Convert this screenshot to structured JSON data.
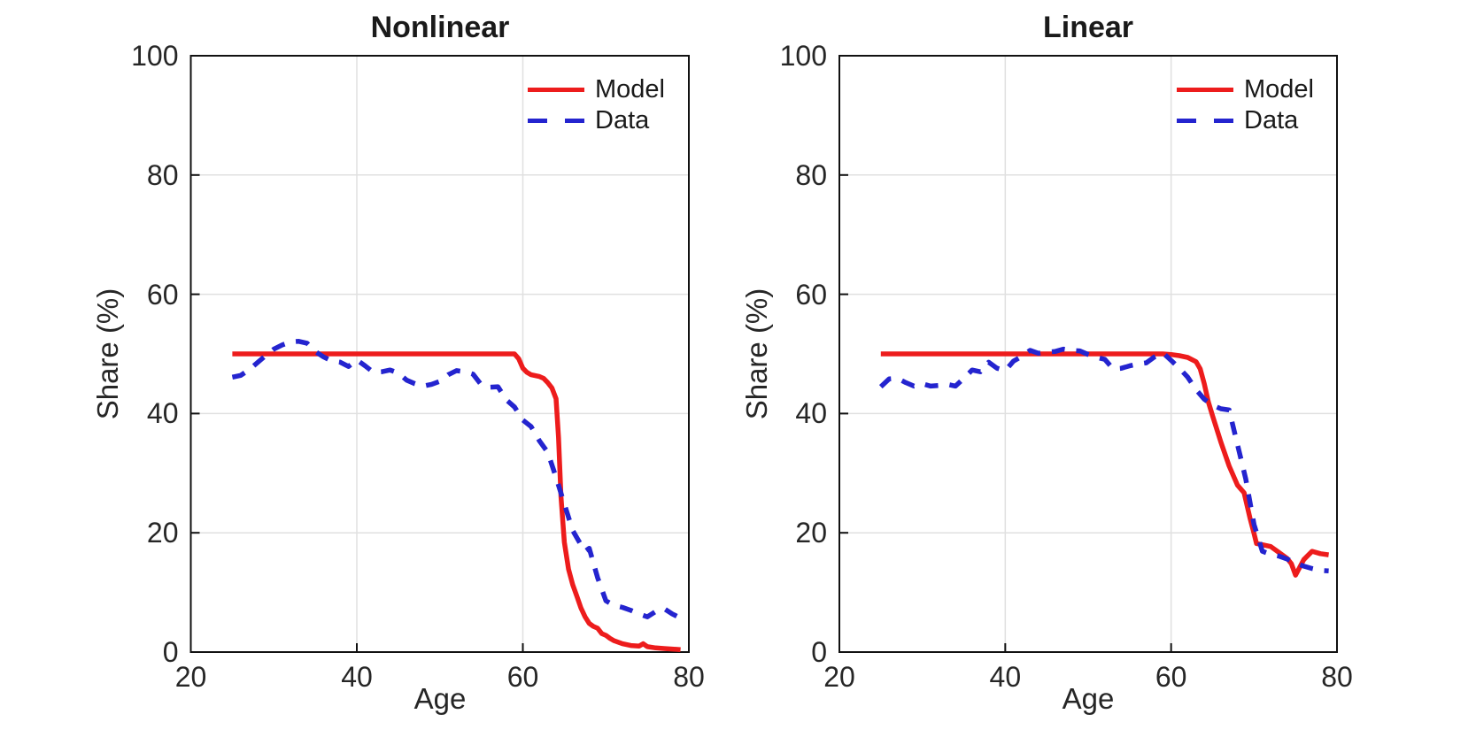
{
  "figure": {
    "background": "#ffffff",
    "axis_color": "#111111",
    "grid_color": "#e0e0e0",
    "text_color": "#262626"
  },
  "chart_data": [
    {
      "type": "line",
      "title": "Nonlinear",
      "xlabel": "Age",
      "ylabel": "Share (%)",
      "xlim": [
        20,
        80
      ],
      "ylim": [
        0,
        100
      ],
      "xticks": [
        20,
        40,
        60,
        80
      ],
      "yticks": [
        0,
        20,
        40,
        60,
        80,
        100
      ],
      "grid": true,
      "legend_position": "northeast",
      "series": [
        {
          "name": "Model",
          "color": "#ed1c1c",
          "style": "solid",
          "points": [
            [
              25,
              50
            ],
            [
              59,
              50
            ],
            [
              59.5,
              49.2
            ],
            [
              60,
              47.6
            ],
            [
              60.5,
              46.9
            ],
            [
              61,
              46.5
            ],
            [
              62,
              46.2
            ],
            [
              62.5,
              45.9
            ],
            [
              63,
              45.2
            ],
            [
              63.5,
              44.3
            ],
            [
              64,
              42.5
            ],
            [
              64.3,
              36
            ],
            [
              64.6,
              26
            ],
            [
              65,
              18.4
            ],
            [
              65.5,
              13.9
            ],
            [
              66,
              11.3
            ],
            [
              66.5,
              9.4
            ],
            [
              67,
              7.4
            ],
            [
              67.5,
              5.9
            ],
            [
              68,
              4.8
            ],
            [
              68.5,
              4.3
            ],
            [
              69,
              4.0
            ],
            [
              69.5,
              3.1
            ],
            [
              70,
              2.8
            ],
            [
              70.5,
              2.3
            ],
            [
              71,
              1.9
            ],
            [
              72,
              1.4
            ],
            [
              73,
              1.1
            ],
            [
              74,
              1.0
            ],
            [
              74.5,
              1.4
            ],
            [
              75,
              0.9
            ],
            [
              76,
              0.7
            ],
            [
              77,
              0.6
            ],
            [
              78,
              0.5
            ],
            [
              79,
              0.4
            ]
          ]
        },
        {
          "name": "Data",
          "color": "#2424cf",
          "style": "dashed",
          "points": [
            [
              25,
              46.1
            ],
            [
              26,
              46.4
            ],
            [
              27,
              47.3
            ],
            [
              28,
              48.5
            ],
            [
              29,
              49.7
            ],
            [
              30,
              50.8
            ],
            [
              31,
              51.5
            ],
            [
              32,
              52.0
            ],
            [
              33,
              52.1
            ],
            [
              34,
              51.8
            ],
            [
              35,
              50.4
            ],
            [
              36,
              49.5
            ],
            [
              37,
              48.8
            ],
            [
              38,
              48.6
            ],
            [
              39,
              47.9
            ],
            [
              40,
              49.0
            ],
            [
              41,
              48.0
            ],
            [
              42,
              46.9
            ],
            [
              43,
              47.0
            ],
            [
              44,
              47.3
            ],
            [
              45,
              46.8
            ],
            [
              46,
              45.6
            ],
            [
              47,
              45.0
            ],
            [
              48,
              44.6
            ],
            [
              49,
              44.9
            ],
            [
              50,
              45.4
            ],
            [
              51,
              46.5
            ],
            [
              52,
              47.2
            ],
            [
              53,
              47.0
            ],
            [
              54,
              46.6
            ],
            [
              55,
              44.8
            ],
            [
              56,
              44.4
            ],
            [
              57,
              44.5
            ],
            [
              58,
              42.3
            ],
            [
              59,
              41.1
            ],
            [
              60,
              38.9
            ],
            [
              61,
              37.8
            ],
            [
              62,
              35.4
            ],
            [
              63,
              33.5
            ],
            [
              64,
              29.3
            ],
            [
              65,
              24.8
            ],
            [
              66,
              20.4
            ],
            [
              67,
              18.0
            ],
            [
              67.5,
              16.9
            ],
            [
              68,
              17.4
            ],
            [
              69,
              12.5
            ],
            [
              70,
              8.6
            ],
            [
              71,
              7.8
            ],
            [
              72,
              7.5
            ],
            [
              73,
              7.0
            ],
            [
              74,
              6.4
            ],
            [
              75,
              5.9
            ],
            [
              76,
              6.8
            ],
            [
              77,
              7.3
            ],
            [
              78,
              6.4
            ],
            [
              79,
              5.7
            ]
          ]
        }
      ]
    },
    {
      "type": "line",
      "title": "Linear",
      "xlabel": "Age",
      "ylabel": "Share (%)",
      "xlim": [
        20,
        80
      ],
      "ylim": [
        0,
        100
      ],
      "xticks": [
        20,
        40,
        60,
        80
      ],
      "yticks": [
        0,
        20,
        40,
        60,
        80,
        100
      ],
      "grid": true,
      "legend_position": "northeast",
      "series": [
        {
          "name": "Model",
          "color": "#ed1c1c",
          "style": "solid",
          "points": [
            [
              25,
              50
            ],
            [
              59,
              50
            ],
            [
              60,
              49.9
            ],
            [
              61,
              49.7
            ],
            [
              62,
              49.4
            ],
            [
              63,
              48.7
            ],
            [
              63.5,
              47.5
            ],
            [
              64,
              45.0
            ],
            [
              64.5,
              41.9
            ],
            [
              65,
              39.6
            ],
            [
              66,
              35.2
            ],
            [
              67,
              31.2
            ],
            [
              68,
              28.0
            ],
            [
              68.8,
              26.7
            ],
            [
              69.5,
              22.5
            ],
            [
              70,
              19.9
            ],
            [
              70.3,
              18.2
            ],
            [
              71,
              18.0
            ],
            [
              72,
              17.7
            ],
            [
              73,
              16.7
            ],
            [
              74,
              15.7
            ],
            [
              74.5,
              14.8
            ],
            [
              75,
              12.9
            ],
            [
              76,
              15.5
            ],
            [
              77,
              16.9
            ],
            [
              78,
              16.5
            ],
            [
              79,
              16.3
            ]
          ]
        },
        {
          "name": "Data",
          "color": "#2424cf",
          "style": "dashed",
          "points": [
            [
              25,
              44.5
            ],
            [
              26,
              45.8
            ],
            [
              27,
              45.9
            ],
            [
              28,
              45.2
            ],
            [
              29,
              44.6
            ],
            [
              30,
              45.0
            ],
            [
              31,
              44.6
            ],
            [
              32,
              44.7
            ],
            [
              33,
              44.9
            ],
            [
              34,
              44.6
            ],
            [
              35,
              45.9
            ],
            [
              36,
              47.3
            ],
            [
              37,
              47.0
            ],
            [
              38,
              48.6
            ],
            [
              39,
              47.6
            ],
            [
              40,
              47.2
            ],
            [
              41,
              48.8
            ],
            [
              42,
              49.6
            ],
            [
              43,
              50.6
            ],
            [
              44,
              50.1
            ],
            [
              45,
              50.3
            ],
            [
              46,
              50.4
            ],
            [
              47,
              50.8
            ],
            [
              48,
              50.6
            ],
            [
              49,
              50.5
            ],
            [
              50,
              49.9
            ],
            [
              51,
              49.4
            ],
            [
              52,
              49.1
            ],
            [
              53,
              47.5
            ],
            [
              54,
              47.6
            ],
            [
              55,
              48.0
            ],
            [
              56,
              48.3
            ],
            [
              57,
              48.5
            ],
            [
              58,
              49.5
            ],
            [
              59,
              50.2
            ],
            [
              60,
              48.9
            ],
            [
              61,
              47.6
            ],
            [
              62,
              46.1
            ],
            [
              63,
              44.0
            ],
            [
              64,
              42.4
            ],
            [
              65,
              41.4
            ],
            [
              66,
              40.8
            ],
            [
              67,
              40.6
            ],
            [
              68,
              34.8
            ],
            [
              69,
              29.0
            ],
            [
              70,
              21.4
            ],
            [
              71,
              16.9
            ],
            [
              72,
              16.4
            ],
            [
              73,
              16.1
            ],
            [
              74,
              15.6
            ],
            [
              75,
              14.9
            ],
            [
              76,
              14.4
            ],
            [
              77,
              14.0
            ],
            [
              78,
              13.7
            ],
            [
              79,
              13.6
            ]
          ]
        }
      ]
    }
  ]
}
